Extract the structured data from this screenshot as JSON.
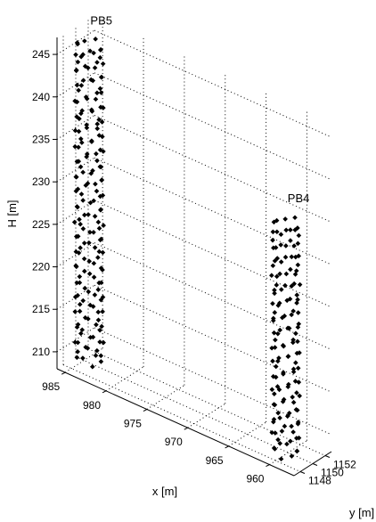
{
  "chart_data": {
    "type": "scatter",
    "dimensions": 3,
    "title": "",
    "xlabel": "x [m]",
    "ylabel": "y [m]",
    "zlabel": "H [m]",
    "xlim": [
      957,
      986
    ],
    "ylim": [
      1147,
      1153
    ],
    "zlim": [
      208,
      247
    ],
    "x_ticks": [
      "985",
      "980",
      "975",
      "970",
      "965",
      "960"
    ],
    "x_tick_values": [
      985,
      980,
      975,
      970,
      965,
      960
    ],
    "y_ticks": [
      "1148",
      "1150",
      "1152"
    ],
    "y_tick_values": [
      1148,
      1150,
      1152
    ],
    "z_ticks": [
      "210",
      "215",
      "220",
      "225",
      "230",
      "235",
      "240",
      "245"
    ],
    "z_tick_values": [
      210,
      215,
      220,
      225,
      230,
      235,
      240,
      245
    ],
    "grid": true,
    "marker": "diamond",
    "marker_color": "#000000",
    "series": [
      {
        "name": "PB5",
        "center": {
          "x": 983.6,
          "y": 1149.0
        },
        "radius_x": 1.4,
        "radius_y": 1.1,
        "layers_H": [
          209.5,
          211.2,
          213.0,
          214.8,
          216.5,
          218.2,
          220.0,
          221.8,
          223.5,
          225.2,
          227.0,
          228.8,
          230.5,
          232.2,
          234.0,
          235.8,
          237.5,
          239.2,
          241.0,
          242.8,
          244.5,
          246.0
        ],
        "points_per_layer": 8
      },
      {
        "name": "PB4",
        "center": {
          "x": 960.0,
          "y": 1149.6
        },
        "radius_x": 1.3,
        "radius_y": 1.2,
        "layers_H": [
          208.5,
          210.2,
          211.8,
          213.5,
          215.2,
          216.8,
          218.5,
          220.2,
          221.8,
          223.5,
          225.2,
          226.8,
          228.5,
          230.2,
          231.8,
          233.5,
          235.0
        ],
        "points_per_layer": 8
      }
    ]
  }
}
